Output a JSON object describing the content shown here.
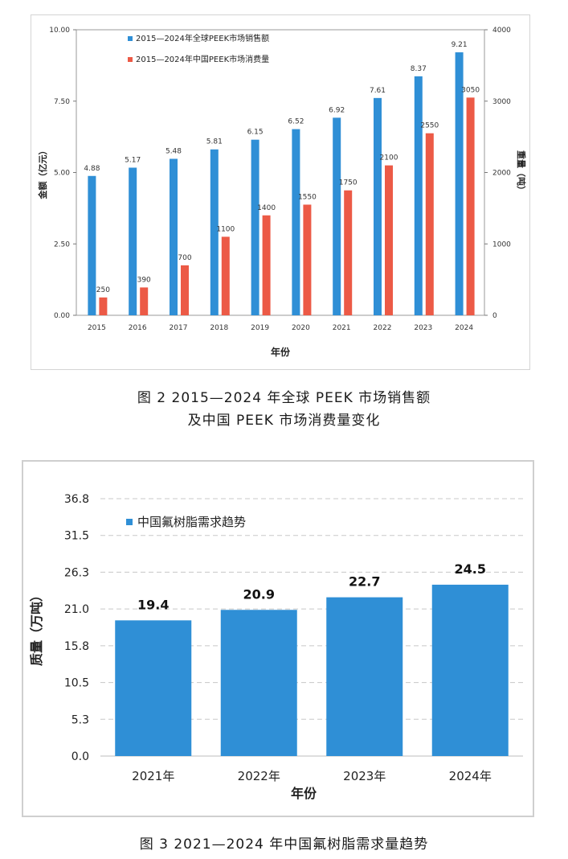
{
  "figure2": {
    "caption_line1": "图 2  2015—2024 年全球 PEEK 市场销售额",
    "caption_line2": "及中国 PEEK 市场消费量变化",
    "chart_data": {
      "type": "bar",
      "categories": [
        "2015",
        "2016",
        "2017",
        "2018",
        "2019",
        "2020",
        "2021",
        "2022",
        "2023",
        "2024"
      ],
      "series": [
        {
          "name": "2015—2024年全球PEEK市场销售额",
          "axis": "left",
          "color": "#2f8fd6",
          "values": [
            4.88,
            5.17,
            5.48,
            5.81,
            6.15,
            6.52,
            6.92,
            7.61,
            8.37,
            9.21
          ],
          "labels": [
            "4.88",
            "5.17",
            "5.48",
            "5.81",
            "6.15",
            "6.52",
            "6.92",
            "7.61",
            "8.37",
            "9.21"
          ]
        },
        {
          "name": "2015—2024年中国PEEK市场消费量",
          "axis": "right",
          "color": "#ec5a46",
          "values": [
            250,
            390,
            700,
            1100,
            1400,
            1550,
            1750,
            2100,
            2550,
            3050
          ],
          "labels": [
            "250",
            "390",
            "700",
            "1100",
            "1400",
            "1550",
            "1750",
            "2100",
            "2550",
            "3050"
          ]
        }
      ],
      "xlabel": "年份",
      "ylabel": "金额（亿元）",
      "y2label": "重量（吨）",
      "ylim": [
        0,
        10
      ],
      "y2lim": [
        0,
        4000
      ],
      "yticks": [
        "0.00",
        "2.50",
        "5.00",
        "7.50",
        "10.00"
      ],
      "y2ticks": [
        "0",
        "1000",
        "2000",
        "3000",
        "4000"
      ],
      "grid": false,
      "legend": "top-left"
    }
  },
  "figure3": {
    "caption": "图 3  2021—2024 年中国氟树脂需求量趋势",
    "chart_data": {
      "type": "bar",
      "categories": [
        "2021年",
        "2022年",
        "2023年",
        "2024年"
      ],
      "series": [
        {
          "name": "中国氟树脂需求趋势",
          "color": "#2f8fd6",
          "values": [
            19.4,
            20.9,
            22.7,
            24.5
          ],
          "labels": [
            "19.4",
            "20.9",
            "22.7",
            "24.5"
          ]
        }
      ],
      "xlabel": "年份",
      "ylabel": "质量（万吨）",
      "ylim": [
        0,
        36.8
      ],
      "yticks": [
        "0.0",
        "5.3",
        "10.5",
        "15.8",
        "21.0",
        "26.3",
        "31.5",
        "36.8"
      ],
      "grid": true,
      "legend": "top-left"
    }
  }
}
